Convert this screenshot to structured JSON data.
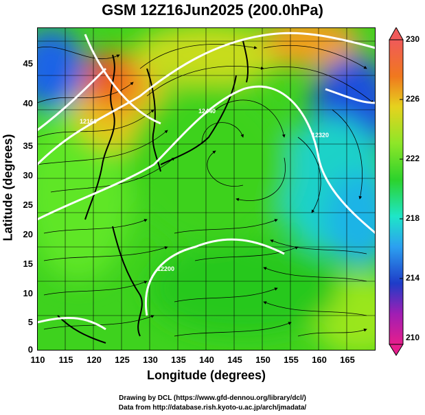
{
  "title": "GSM 12Z16Jun2025 (200.0hPa)",
  "xaxis": {
    "label": "Longitude (degrees)",
    "ticks": [
      "110",
      "115",
      "120",
      "125",
      "130",
      "135",
      "140",
      "145",
      "150",
      "155",
      "160",
      "165"
    ]
  },
  "yaxis": {
    "label": "Latitude (degrees)",
    "ticks": [
      "0",
      "5",
      "10",
      "15",
      "20",
      "25",
      "30",
      "35",
      "40",
      "45"
    ]
  },
  "colorbar": {
    "labels": [
      "230",
      "226",
      "222",
      "218",
      "214",
      "210"
    ],
    "colors": [
      "#f05a5a",
      "#f08a1e",
      "#e6d21e",
      "#7ee62c",
      "#2cd22c",
      "#1ee6c8",
      "#2ca0f0",
      "#1e3cc8",
      "#b41eb4",
      "#e61e8c"
    ]
  },
  "map": {
    "contour_labels": [
      "12160",
      "12440",
      "12200",
      "12320"
    ]
  },
  "credits": {
    "line1": "Drawing by DCL (https://www.gfd-dennou.org/library/dcl/)",
    "line2": "Data from http://database.rish.kyoto-u.ac.jp/arch/jmadata/"
  }
}
